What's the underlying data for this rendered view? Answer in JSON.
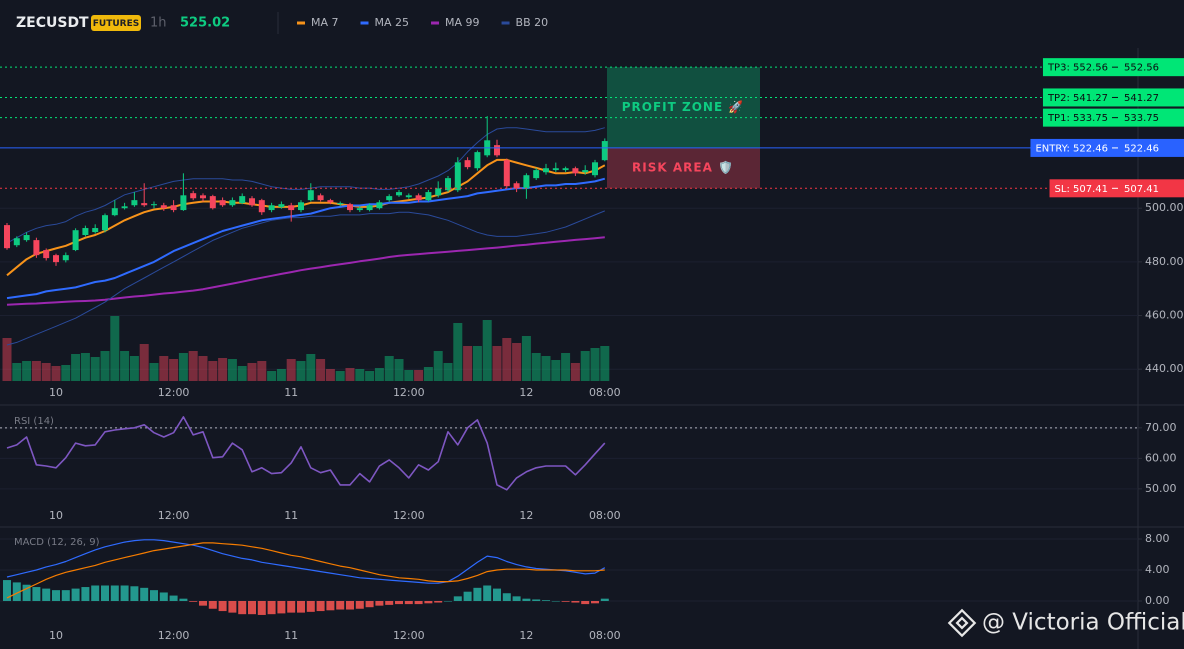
{
  "chart_data": [
    {
      "type": "candlestick",
      "title": "ZECUSDT",
      "badge": "FUTURES",
      "interval": "1h",
      "last_price": 525.02,
      "categories": [
        null,
        null,
        null,
        null,
        null,
        "10",
        null,
        null,
        null,
        null,
        null,
        null,
        null,
        null,
        null,
        null,
        null,
        "12:00",
        null,
        null,
        null,
        null,
        null,
        null,
        null,
        null,
        null,
        null,
        null,
        "11",
        null,
        null,
        null,
        null,
        null,
        null,
        null,
        null,
        null,
        null,
        null,
        "12:00",
        null,
        null,
        null,
        null,
        null,
        null,
        null,
        null,
        null,
        null,
        null,
        "12",
        null,
        null,
        null,
        null,
        null,
        null,
        null,
        "08:00"
      ],
      "open": [
        493.7,
        486.2,
        488.1,
        488.1,
        484.4,
        482.5,
        480.6,
        484.4,
        490.0,
        491.1,
        491.8,
        497.4,
        500.0,
        501.1,
        501.9,
        501.1,
        501.1,
        501.1,
        499.3,
        505.6,
        504.8,
        504.5,
        503.0,
        501.1,
        501.9,
        503.7,
        503.0,
        499.3,
        500.4,
        501.1,
        499.3,
        503.0,
        504.8,
        503.0,
        501.5,
        501.5,
        499.3,
        499.3,
        500.0,
        503.0,
        504.8,
        504.1,
        504.8,
        503.0,
        504.8,
        506.7,
        506.7,
        517.9,
        514.9,
        519.7,
        523.5,
        517.9,
        509.3,
        507.4,
        511.2,
        513.4,
        514.2,
        514.2,
        514.9,
        513.4,
        512.3,
        517.9
      ],
      "high": [
        494.5,
        489.5,
        491.0,
        489.0,
        485.0,
        483.0,
        483.5,
        492.5,
        493.5,
        494.0,
        498.0,
        503.0,
        502.0,
        506.0,
        509.3,
        502.5,
        502.0,
        503.0,
        513.0,
        506.5,
        505.5,
        505.0,
        504.0,
        504.0,
        505.5,
        504.5,
        503.5,
        502.0,
        502.5,
        502.0,
        503.0,
        509.3,
        505.5,
        503.5,
        502.5,
        502.0,
        500.8,
        501.8,
        503.0,
        505.2,
        506.8,
        505.5,
        505.5,
        506.8,
        510.0,
        512.0,
        519.0,
        519.0,
        521.5,
        534.3,
        525.5,
        518.5,
        510.0,
        513.0,
        515.0,
        516.5,
        517.0,
        515.5,
        515.5,
        516.0,
        518.0,
        526.0
      ],
      "low": [
        484.5,
        485.5,
        487.5,
        481.5,
        480.5,
        478.5,
        479.8,
        484.0,
        489.5,
        490.5,
        491.0,
        497.0,
        499.5,
        500.5,
        500.5,
        500.0,
        499.0,
        498.5,
        499.0,
        503.0,
        502.5,
        499.5,
        500.5,
        500.5,
        501.5,
        500.5,
        497.5,
        498.5,
        499.8,
        495.0,
        498.5,
        502.5,
        502.5,
        501.5,
        500.8,
        498.5,
        498.6,
        498.8,
        499.5,
        502.5,
        504.2,
        503.5,
        502.2,
        502.5,
        504.0,
        506.0,
        506.0,
        514.5,
        514.0,
        519.0,
        519.0,
        507.5,
        506.0,
        503.5,
        510.5,
        512.5,
        513.5,
        513.5,
        512.0,
        512.5,
        511.5,
        517.5
      ],
      "close": [
        485.1,
        488.8,
        490.0,
        482.5,
        481.4,
        479.9,
        482.5,
        491.8,
        492.6,
        492.6,
        497.4,
        500.0,
        500.7,
        503.0,
        501.1,
        501.5,
        500.0,
        499.3,
        504.8,
        503.7,
        503.7,
        500.0,
        501.1,
        503.0,
        504.5,
        501.1,
        498.5,
        501.1,
        501.5,
        499.3,
        502.2,
        506.7,
        503.0,
        502.2,
        501.9,
        499.3,
        500.0,
        501.1,
        502.2,
        504.5,
        506.0,
        504.8,
        503.0,
        506.0,
        507.4,
        511.2,
        517.1,
        515.3,
        520.9,
        525.3,
        519.7,
        508.2,
        507.4,
        512.3,
        514.2,
        514.9,
        514.9,
        514.9,
        513.0,
        514.2,
        517.1,
        525.02
      ],
      "up_color": "#0ecb81",
      "down_color": "#f6465d",
      "volume": [
        43,
        18,
        20,
        20,
        18,
        15,
        16,
        27,
        28,
        24,
        30,
        65,
        30,
        25,
        37,
        18,
        25,
        22,
        28,
        30,
        25,
        20,
        23,
        22,
        15,
        18,
        20,
        10,
        12,
        22,
        20,
        27,
        22,
        12,
        10,
        13,
        12,
        10,
        13,
        25,
        22,
        11,
        11,
        14,
        30,
        18,
        58,
        35,
        35,
        61,
        35,
        43,
        38,
        45,
        28,
        25,
        21,
        28,
        18,
        30,
        33,
        35
      ],
      "volume_lim": [
        0,
        130
      ],
      "series": [
        {
          "name": "MA 7",
          "color": "#f7931a",
          "values": [
            475,
            478,
            481,
            483,
            484,
            485,
            486,
            487.5,
            489,
            490,
            491.5,
            493.5,
            495.5,
            497,
            498.5,
            499.5,
            500,
            500.5,
            501.5,
            502,
            502.5,
            502.5,
            502.5,
            502,
            502,
            501.5,
            501,
            500.5,
            500.5,
            500.5,
            501,
            502,
            502,
            502,
            501.5,
            501,
            500.5,
            500.5,
            501,
            502,
            502.5,
            503,
            503.5,
            504,
            505,
            506,
            508,
            510,
            513,
            516,
            518,
            518,
            517,
            516,
            515,
            514,
            513,
            513,
            513.5,
            513,
            514,
            516
          ]
        },
        {
          "name": "MA 25",
          "color": "#2f6bff",
          "values": [
            466.5,
            467,
            467.5,
            468,
            469,
            469.5,
            470,
            470.5,
            471.5,
            472.5,
            473,
            474,
            475.5,
            477,
            478.5,
            480,
            482,
            484,
            485.5,
            487,
            488.5,
            490,
            491.5,
            492.5,
            493.5,
            494.5,
            495.5,
            496,
            496.5,
            497,
            497.5,
            498,
            499,
            500,
            500.5,
            501,
            501,
            501.5,
            501.5,
            502,
            502,
            502,
            502.5,
            502.5,
            503,
            503.5,
            504,
            504.5,
            505.5,
            506,
            506.5,
            507,
            507.5,
            507.5,
            508,
            508.5,
            508.5,
            509,
            509,
            509.5,
            510,
            511
          ]
        },
        {
          "name": "MA 99",
          "color": "#9c27b0",
          "values": [
            464,
            464.2,
            464.4,
            464.5,
            464.7,
            464.9,
            465.1,
            465.3,
            465.4,
            465.6,
            465.9,
            466.3,
            466.7,
            467.1,
            467.4,
            467.8,
            468.2,
            468.5,
            468.9,
            469.3,
            469.8,
            470.5,
            471.2,
            471.9,
            472.6,
            473.4,
            474.1,
            474.8,
            475.5,
            476.2,
            476.9,
            477.5,
            478,
            478.6,
            479.1,
            479.6,
            480.2,
            480.7,
            481.2,
            481.8,
            482.3,
            482.6,
            482.9,
            483.2,
            483.5,
            483.8,
            484.1,
            484.4,
            484.7,
            485,
            485.3,
            485.7,
            486.1,
            486.4,
            486.8,
            487.1,
            487.5,
            487.8,
            488.2,
            488.5,
            488.8,
            489.2
          ]
        },
        {
          "name": "BB 20",
          "color": "#2a4a9a",
          "upper": [
            487,
            489,
            491,
            492.5,
            493.5,
            494,
            495,
            497,
            498.5,
            499.5,
            501,
            503,
            505,
            506,
            507,
            508,
            509,
            510,
            510.5,
            511,
            511,
            511,
            511,
            510.5,
            510.5,
            510,
            509,
            508,
            507.5,
            507,
            507,
            507.5,
            508,
            508,
            508,
            508,
            507.5,
            507.5,
            507,
            507,
            507.5,
            508,
            509,
            510.5,
            512,
            514,
            517,
            521,
            524.5,
            527.5,
            529.5,
            530,
            530,
            529.5,
            529,
            528.5,
            528.5,
            528.5,
            528.5,
            528.5,
            529,
            530
          ],
          "lower": [
            449,
            450,
            451.5,
            453,
            454.5,
            456,
            457.5,
            459,
            461,
            463,
            465,
            467.5,
            470,
            472,
            474,
            476,
            478,
            480,
            482,
            484,
            486,
            488,
            489.5,
            491,
            492.5,
            493.5,
            494.5,
            495.5,
            496,
            496.5,
            496.5,
            497,
            497,
            497,
            497.5,
            497.5,
            497.5,
            498,
            498,
            498,
            498.5,
            498.5,
            498,
            497.5,
            496.5,
            495.5,
            494,
            492.5,
            491,
            490,
            489.5,
            489.5,
            489.5,
            490,
            490.5,
            491,
            492,
            493,
            494.5,
            496,
            497.5,
            499
          ]
        }
      ],
      "ylim": [
        435.6,
        559.7
      ],
      "yticks": [
        {
          "value": 440,
          "label": "440.00"
        },
        {
          "value": 460,
          "label": "460.00"
        },
        {
          "value": 480,
          "label": "480.00"
        },
        {
          "value": 500,
          "label": "500.00"
        }
      ],
      "levels": [
        {
          "label": "TP3: 552.56",
          "value": 552.56,
          "color": "#00e676",
          "text_color": "#0b0e11",
          "dashed": true
        },
        {
          "label": "TP2: 541.27",
          "value": 541.27,
          "color": "#00e676",
          "text_color": "#0b0e11",
          "dashed": true
        },
        {
          "label": "TP1: 533.75",
          "value": 533.75,
          "color": "#00e676",
          "text_color": "#0b0e11",
          "dashed": true
        },
        {
          "label": "ENTRY: 522.46",
          "value": 522.46,
          "color": "#2962ff",
          "text_color": "#ffffff",
          "dashed": false
        },
        {
          "label": "SL: 507.41",
          "value": 507.41,
          "color": "#f23645",
          "text_color": "#ffffff",
          "dashed": true
        }
      ],
      "zones": [
        {
          "label": "PROFIT ZONE 🚀",
          "color": "#0ecb81"
        },
        {
          "label": "RISK AREA 🛡️",
          "color": "#f6465d"
        }
      ]
    },
    {
      "type": "line",
      "title": "RSI (14)",
      "categories": [
        null,
        null,
        null,
        null,
        null,
        "10",
        null,
        null,
        null,
        null,
        null,
        null,
        null,
        null,
        null,
        null,
        null,
        "12:00",
        null,
        null,
        null,
        null,
        null,
        null,
        null,
        null,
        null,
        null,
        null,
        "11",
        null,
        null,
        null,
        null,
        null,
        null,
        null,
        null,
        null,
        null,
        null,
        "12:00",
        null,
        null,
        null,
        null,
        null,
        null,
        null,
        null,
        null,
        null,
        null,
        "12",
        null,
        null,
        null,
        null,
        null,
        null,
        null,
        "08:00"
      ],
      "values": [
        63.4,
        64.4,
        67,
        57.9,
        57.5,
        56.9,
        60.2,
        65,
        64.1,
        64.4,
        68.7,
        69.3,
        69.7,
        70,
        71,
        68.4,
        67,
        68.4,
        73.6,
        67.7,
        68.7,
        60.2,
        60.5,
        65,
        62.8,
        55.6,
        56.9,
        55,
        55.3,
        58.5,
        63.8,
        56.9,
        55.3,
        56.2,
        51.3,
        51.3,
        55,
        52.3,
        57.5,
        59.5,
        56.9,
        53.6,
        57.9,
        56.2,
        58.9,
        68.7,
        64.4,
        70,
        72.6,
        65,
        51.3,
        49.7,
        53.6,
        55.6,
        56.9,
        57.5,
        57.5,
        57.5,
        54.6,
        57.9,
        61.5,
        65
      ],
      "color": "#7e57c2",
      "level": 70,
      "ylim": [
        45.7,
        76.5
      ],
      "yticks": [
        {
          "value": 50,
          "label": "50.00"
        },
        {
          "value": 60,
          "label": "60.00"
        },
        {
          "value": 70,
          "label": "70.00"
        }
      ]
    },
    {
      "type": "combo",
      "title": "MACD (12, 26, 9)",
      "categories": [
        null,
        null,
        null,
        null,
        null,
        "10",
        null,
        null,
        null,
        null,
        null,
        null,
        null,
        null,
        null,
        null,
        null,
        "12:00",
        null,
        null,
        null,
        null,
        null,
        null,
        null,
        null,
        null,
        null,
        null,
        "11",
        null,
        null,
        null,
        null,
        null,
        null,
        null,
        null,
        null,
        null,
        null,
        "12:00",
        null,
        null,
        null,
        null,
        null,
        null,
        null,
        null,
        null,
        null,
        null,
        "12",
        null,
        null,
        null,
        null,
        null,
        null,
        null,
        "08:00"
      ],
      "macd": {
        "color": "#2f6bff",
        "values": [
          3.1,
          3.4,
          3.7,
          4.0,
          4.4,
          4.7,
          5.1,
          5.6,
          6.1,
          6.6,
          7.0,
          7.3,
          7.6,
          7.8,
          7.9,
          7.9,
          7.8,
          7.6,
          7.4,
          7.2,
          6.9,
          6.5,
          6.1,
          5.8,
          5.5,
          5.3,
          5.0,
          4.8,
          4.6,
          4.4,
          4.2,
          4.0,
          3.8,
          3.6,
          3.4,
          3.2,
          3.0,
          2.9,
          2.8,
          2.7,
          2.6,
          2.5,
          2.4,
          2.3,
          2.3,
          2.5,
          3.2,
          4.1,
          5.0,
          5.8,
          5.6,
          5.1,
          4.7,
          4.4,
          4.2,
          4.1,
          4.0,
          3.9,
          3.7,
          3.5,
          3.6,
          4.3
        ]
      },
      "signal": {
        "color": "#f57c00",
        "values": [
          0.4,
          1.0,
          1.6,
          2.2,
          2.8,
          3.3,
          3.7,
          4.0,
          4.3,
          4.6,
          5.0,
          5.3,
          5.6,
          5.9,
          6.2,
          6.5,
          6.7,
          6.9,
          7.1,
          7.3,
          7.5,
          7.5,
          7.4,
          7.3,
          7.2,
          7.0,
          6.8,
          6.5,
          6.2,
          5.9,
          5.7,
          5.4,
          5.1,
          4.8,
          4.5,
          4.3,
          4.0,
          3.7,
          3.4,
          3.2,
          3.0,
          2.9,
          2.8,
          2.6,
          2.5,
          2.5,
          2.6,
          2.9,
          3.3,
          3.8,
          4.0,
          4.1,
          4.1,
          4.1,
          4.0,
          4.0,
          4.0,
          4.0,
          3.9,
          3.9,
          3.9,
          4.0
        ]
      },
      "histogram": {
        "up_color": "#26a69a",
        "down_color": "#ef5350",
        "values": [
          2.7,
          2.4,
          2.1,
          1.8,
          1.6,
          1.4,
          1.4,
          1.6,
          1.8,
          2.0,
          2.0,
          2.0,
          2.0,
          1.9,
          1.7,
          1.4,
          1.1,
          0.7,
          0.3,
          -0.1,
          -0.6,
          -1.0,
          -1.3,
          -1.5,
          -1.7,
          -1.7,
          -1.8,
          -1.7,
          -1.6,
          -1.5,
          -1.5,
          -1.4,
          -1.3,
          -1.2,
          -1.1,
          -1.1,
          -1.0,
          -0.8,
          -0.6,
          -0.5,
          -0.4,
          -0.4,
          -0.4,
          -0.3,
          -0.2,
          0.0,
          0.6,
          1.2,
          1.7,
          2.0,
          1.6,
          1.0,
          0.6,
          0.3,
          0.2,
          0.1,
          0.0,
          -0.1,
          -0.2,
          -0.4,
          -0.3,
          0.3
        ]
      },
      "ylim": [
        -2.71,
        9.42
      ],
      "yticks": [
        {
          "value": 0,
          "label": "0.00"
        },
        {
          "value": 4,
          "label": "4.00"
        },
        {
          "value": 8,
          "label": "8.00"
        }
      ]
    }
  ],
  "watermark": "@ Victoria Official"
}
